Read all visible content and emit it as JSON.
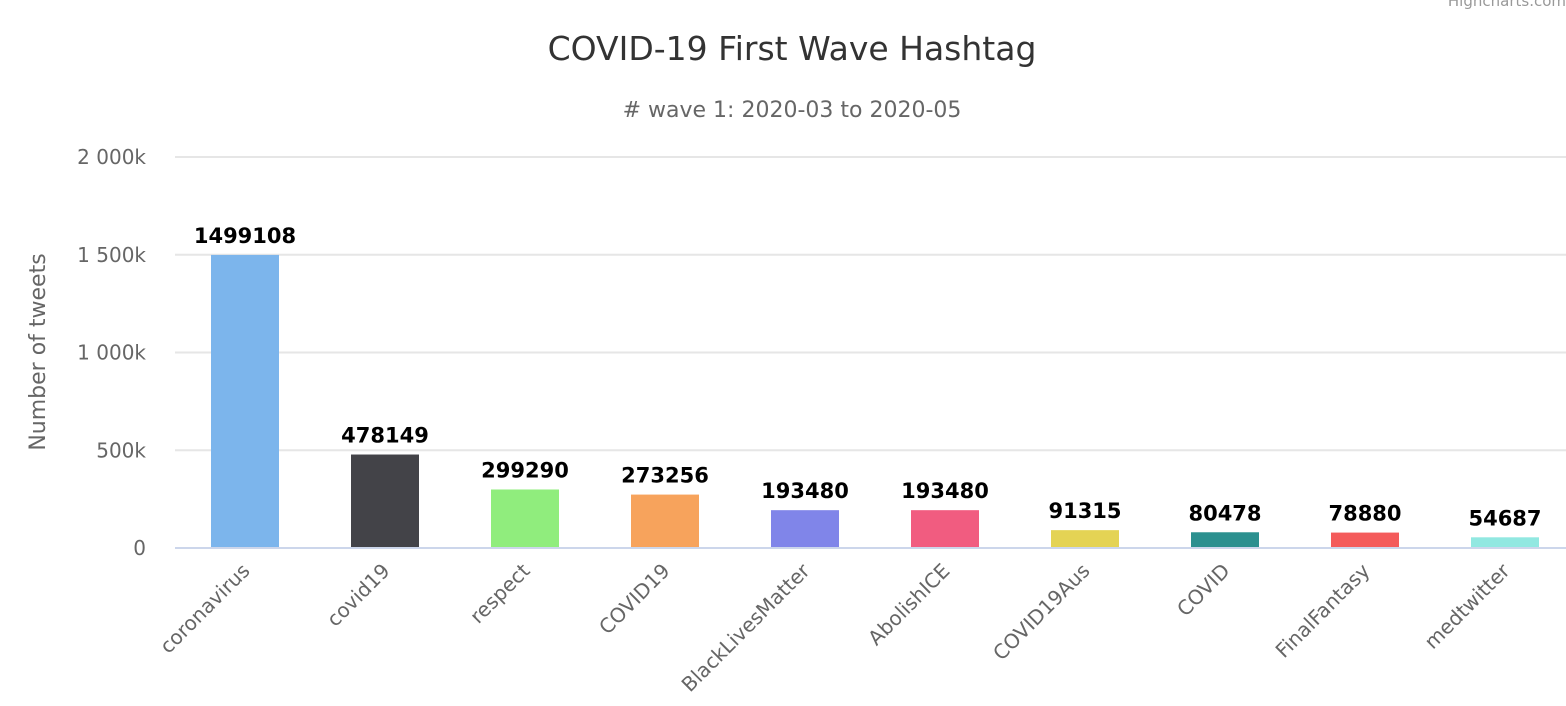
{
  "credits": "Highcharts.com",
  "chart_data": {
    "type": "bar",
    "title": "COVID-19 First Wave Hashtag",
    "subtitle": "# wave 1: 2020-03 to 2020-05",
    "ylabel": "Number of tweets",
    "xlabel": "",
    "ylim": [
      0,
      2000000
    ],
    "yticks": [
      0,
      500000,
      1000000,
      1500000,
      2000000
    ],
    "ytick_labels": [
      "0",
      "500k",
      "1 000k",
      "1 500k",
      "2 000k"
    ],
    "grid": true,
    "legend": "none",
    "categories": [
      "coronavirus",
      "covid19",
      "respect",
      "COVID19",
      "BlackLivesMatter",
      "AbolishICE",
      "COVID19Aus",
      "COVID",
      "FinalFantasy",
      "medtwitter"
    ],
    "values": [
      1499108,
      478149,
      299290,
      273256,
      193480,
      193480,
      91315,
      80478,
      78880,
      54687
    ],
    "colors": [
      "#7cb5ec",
      "#434348",
      "#90ed7d",
      "#f7a35c",
      "#8085e9",
      "#f15c80",
      "#e4d354",
      "#2b908f",
      "#f45b5b",
      "#91e8e1"
    ]
  }
}
